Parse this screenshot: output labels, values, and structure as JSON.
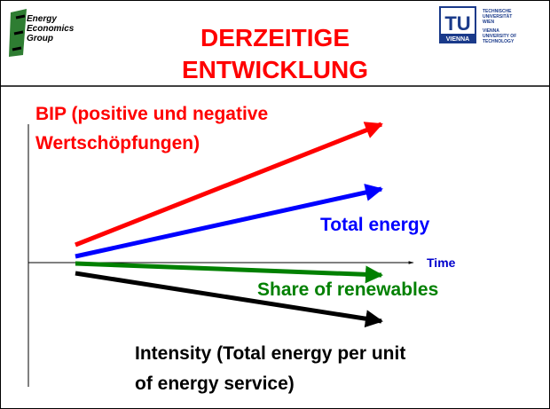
{
  "logo": {
    "lines": [
      "Energy",
      "Economics",
      "Group"
    ]
  },
  "title": {
    "lines": [
      "DERZEITIGE",
      "ENTWICKLUNG"
    ]
  },
  "tu_logo": {
    "mark": "TU",
    "city": "VIENNA",
    "lines_de": [
      "TECHNISCHE",
      "UNIVERSITÄT",
      "WIEN"
    ],
    "lines_en": [
      "VIENNA",
      "UNIVERSITY OF",
      "TECHNOLOGY"
    ]
  },
  "labels": {
    "bip": [
      "BIP (positive und negative",
      "Wertschöpfungen)"
    ],
    "total_energy": "Total energy",
    "time": "Time",
    "share_renewables": "Share of renewables",
    "intensity": [
      "Intensity (Total energy per unit",
      "of energy service)"
    ]
  }
}
